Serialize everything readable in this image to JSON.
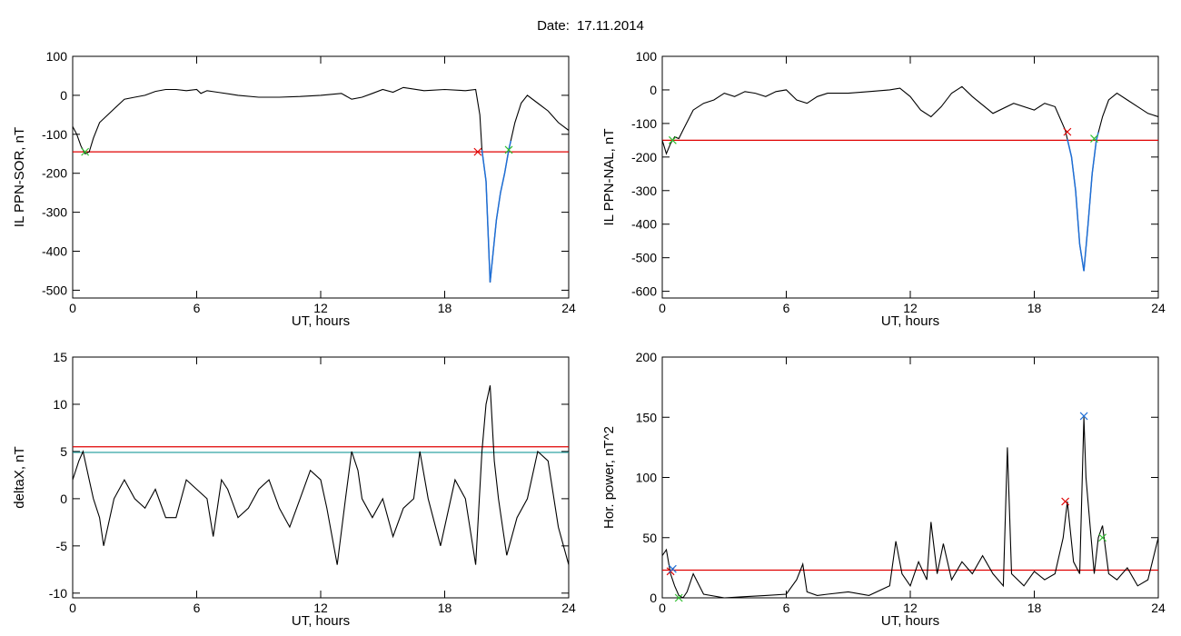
{
  "header": {
    "date_label": "Date:",
    "date_value": "17.11.2014"
  },
  "colors": {
    "data_line": "#000000",
    "threshold_red": "#e00000",
    "threshold_teal": "#1a9a9a",
    "highlight_blue": "#1f6fd6",
    "marker_red": "#e00000",
    "marker_green": "#30c030",
    "marker_blue": "#1f6fd6"
  },
  "chart_data": [
    {
      "type": "line",
      "ylabel": "IL PPN-SOR, nT",
      "xlabel": "UT, hours",
      "xlim": [
        0,
        24
      ],
      "ylim": [
        -520,
        100
      ],
      "xticks": [
        0,
        6,
        12,
        18,
        24
      ],
      "yticks": [
        -500,
        -400,
        -300,
        -200,
        -100,
        0,
        100
      ],
      "grid": false,
      "series": [
        {
          "x": [
            0,
            0.2,
            0.4,
            0.6,
            0.8,
            1.0,
            1.3,
            1.6,
            2.0,
            2.5,
            3.0,
            3.5,
            4.0,
            4.5,
            5.0,
            5.5,
            6.0,
            6.2,
            6.5,
            7.0,
            8.0,
            9.0,
            10.0,
            11.0,
            12.0,
            13.0,
            13.5,
            14.0,
            14.5,
            15.0,
            15.5,
            16.0,
            17.0,
            18.0,
            19.0,
            19.5,
            19.7,
            19.8,
            20.0,
            20.2,
            20.5,
            20.7,
            20.9,
            21.1,
            21.4,
            21.7,
            22.0,
            22.5,
            23.0,
            23.5,
            24.0
          ],
          "y": [
            -80,
            -100,
            -130,
            -150,
            -145,
            -110,
            -70,
            -55,
            -35,
            -10,
            -5,
            0,
            10,
            15,
            15,
            12,
            15,
            5,
            12,
            8,
            0,
            -5,
            -5,
            -3,
            0,
            5,
            -10,
            -5,
            5,
            15,
            8,
            20,
            12,
            15,
            12,
            15,
            -50,
            -140,
            -220,
            -480,
            -320,
            -250,
            -200,
            -140,
            -70,
            -20,
            0,
            -20,
            -40,
            -70,
            -90
          ]
        }
      ],
      "threshold": -145,
      "highlight_ranges": [
        [
          19.8,
          21.2
        ]
      ],
      "markers": [
        {
          "x": 0.6,
          "y": -145,
          "color": "green"
        },
        {
          "x": 19.6,
          "y": -145,
          "color": "red"
        },
        {
          "x": 21.1,
          "y": -140,
          "color": "green"
        }
      ]
    },
    {
      "type": "line",
      "ylabel": "IL PPN-NAL, nT",
      "xlabel": "UT, hours",
      "xlim": [
        0,
        24
      ],
      "ylim": [
        -620,
        100
      ],
      "xticks": [
        0,
        6,
        12,
        18,
        24
      ],
      "yticks": [
        -600,
        -500,
        -400,
        -300,
        -200,
        -100,
        0,
        100
      ],
      "grid": false,
      "series": [
        {
          "x": [
            0,
            0.2,
            0.4,
            0.6,
            0.8,
            1.0,
            1.5,
            2.0,
            2.5,
            3.0,
            3.5,
            4.0,
            4.5,
            5.0,
            5.5,
            6.0,
            6.5,
            7.0,
            7.5,
            8.0,
            9.0,
            10.0,
            11.0,
            11.5,
            12.0,
            12.5,
            13.0,
            13.5,
            14.0,
            14.5,
            15.0,
            16.0,
            17.0,
            18.0,
            18.5,
            19.0,
            19.5,
            19.8,
            20.0,
            20.2,
            20.4,
            20.6,
            20.8,
            21.0,
            21.3,
            21.6,
            22.0,
            22.5,
            23.0,
            23.5,
            24.0
          ],
          "y": [
            -150,
            -190,
            -160,
            -140,
            -145,
            -120,
            -60,
            -40,
            -30,
            -10,
            -20,
            -5,
            -10,
            -20,
            -5,
            0,
            -30,
            -40,
            -20,
            -10,
            -10,
            -5,
            0,
            5,
            -20,
            -60,
            -80,
            -50,
            -10,
            10,
            -20,
            -70,
            -40,
            -60,
            -40,
            -50,
            -120,
            -200,
            -300,
            -460,
            -540,
            -400,
            -250,
            -150,
            -80,
            -30,
            -10,
            -30,
            -50,
            -70,
            -80
          ]
        }
      ],
      "threshold": -150,
      "highlight_ranges": [
        [
          19.6,
          21.1
        ]
      ],
      "markers": [
        {
          "x": 0.5,
          "y": -150,
          "color": "green"
        },
        {
          "x": 19.6,
          "y": -125,
          "color": "red"
        },
        {
          "x": 20.9,
          "y": -145,
          "color": "green"
        }
      ]
    },
    {
      "type": "line",
      "ylabel": "deltaX, nT",
      "xlabel": "UT, hours",
      "xlim": [
        0,
        24
      ],
      "ylim": [
        -10.5,
        15
      ],
      "xticks": [
        0,
        6,
        12,
        18,
        24
      ],
      "yticks": [
        -10,
        -5,
        0,
        5,
        10,
        15
      ],
      "grid": false,
      "series": [
        {
          "x": [
            0,
            0.3,
            0.5,
            0.8,
            1.0,
            1.3,
            1.5,
            2.0,
            2.5,
            3.0,
            3.5,
            4.0,
            4.5,
            5.0,
            5.5,
            6.0,
            6.5,
            6.8,
            7.2,
            7.5,
            8.0,
            8.5,
            9.0,
            9.5,
            10.0,
            10.5,
            11.0,
            11.5,
            12.0,
            12.3,
            12.8,
            13.2,
            13.5,
            13.8,
            14.0,
            14.5,
            15.0,
            15.5,
            16.0,
            16.5,
            16.8,
            17.2,
            17.8,
            18.5,
            19.0,
            19.5,
            19.8,
            20.0,
            20.2,
            20.4,
            20.6,
            20.8,
            21.0,
            21.5,
            22.0,
            22.5,
            23.0,
            23.5,
            24.0
          ],
          "y": [
            2,
            4,
            5,
            2,
            0,
            -2,
            -5,
            0,
            2,
            0,
            -1,
            1,
            -2,
            -2,
            2,
            1,
            0,
            -4,
            2,
            1,
            -2,
            -1,
            1,
            2,
            -1,
            -3,
            0,
            3,
            2,
            -1,
            -7,
            0,
            5,
            3,
            0,
            -2,
            0,
            -4,
            -1,
            0,
            5,
            0,
            -5,
            2,
            0,
            -7,
            5,
            10,
            12,
            4,
            0,
            -3,
            -6,
            -2,
            0,
            5,
            4,
            -3,
            -7
          ]
        }
      ],
      "thresholds": [
        {
          "value": 5.5,
          "color": "red"
        },
        {
          "value": 4.9,
          "color": "teal"
        }
      ]
    },
    {
      "type": "line",
      "ylabel": "Hor. power, nT^2",
      "xlabel": "UT, hours",
      "xlim": [
        0,
        24
      ],
      "ylim": [
        0,
        200
      ],
      "xticks": [
        0,
        6,
        12,
        18,
        24
      ],
      "yticks": [
        0,
        50,
        100,
        150,
        200
      ],
      "grid": false,
      "series": [
        {
          "x": [
            0,
            0.2,
            0.4,
            0.6,
            0.8,
            1.0,
            1.2,
            1.5,
            2.0,
            3.0,
            4.0,
            5.0,
            6.0,
            6.5,
            6.8,
            7.0,
            7.5,
            8.0,
            9.0,
            10.0,
            11.0,
            11.3,
            11.6,
            12.0,
            12.4,
            12.8,
            13.0,
            13.3,
            13.6,
            14.0,
            14.5,
            15.0,
            15.5,
            16.0,
            16.5,
            16.7,
            16.9,
            17.5,
            18.0,
            18.5,
            19.0,
            19.4,
            19.6,
            19.9,
            20.2,
            20.4,
            20.5,
            20.7,
            20.9,
            21.1,
            21.3,
            21.6,
            22.0,
            22.5,
            23.0,
            23.5,
            24.0
          ],
          "y": [
            35,
            40,
            20,
            10,
            2,
            0,
            5,
            20,
            3,
            0,
            1,
            2,
            3,
            15,
            28,
            5,
            2,
            3,
            5,
            2,
            10,
            47,
            20,
            10,
            30,
            15,
            63,
            20,
            45,
            15,
            30,
            20,
            35,
            20,
            10,
            125,
            20,
            10,
            22,
            15,
            20,
            50,
            80,
            30,
            20,
            150,
            100,
            60,
            20,
            50,
            60,
            20,
            15,
            25,
            10,
            15,
            50
          ]
        }
      ],
      "threshold": 23,
      "markers": [
        {
          "x": 0.4,
          "y": 22,
          "color": "red"
        },
        {
          "x": 0.5,
          "y": 24,
          "color": "blue"
        },
        {
          "x": 0.8,
          "y": 0,
          "color": "green"
        },
        {
          "x": 19.5,
          "y": 80,
          "color": "red"
        },
        {
          "x": 20.4,
          "y": 151,
          "color": "blue"
        },
        {
          "x": 21.3,
          "y": 50,
          "color": "green"
        }
      ]
    }
  ]
}
